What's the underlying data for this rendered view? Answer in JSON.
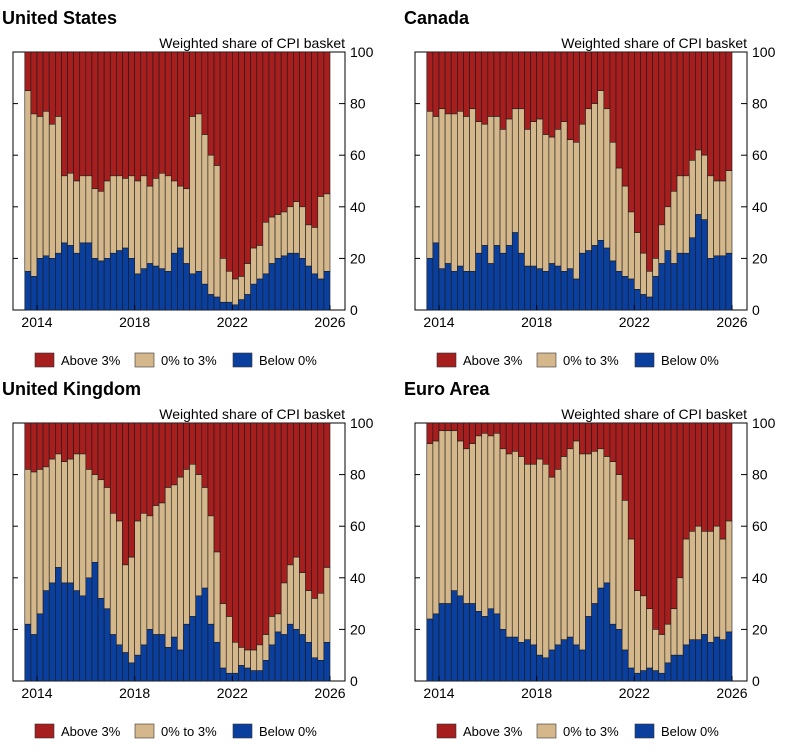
{
  "chart_data": {
    "type": "bar",
    "stacked": true,
    "frequency": "quarterly",
    "x_start": "2013-Q3",
    "x_end": "2025-Q4",
    "xticks": [
      "2014",
      "2018",
      "2022",
      "2026"
    ],
    "yticks": [
      "0",
      "20",
      "40",
      "60",
      "80",
      "100"
    ],
    "ylim": [
      0,
      100
    ],
    "ylabel": "Weighted share of CPI basket",
    "yaxis_side": "right",
    "grid": false,
    "legend": {
      "placement": "bottom",
      "entries": [
        "Above 3%",
        "0% to 3%",
        "Below 0%"
      ]
    },
    "colors": {
      "above": "#a61e1e",
      "mid": "#d4b88c",
      "below": "#0b3f9e"
    },
    "panels": [
      {
        "title": "United States",
        "below": [
          15,
          13,
          20,
          21,
          20,
          22,
          26,
          25,
          22,
          26,
          26,
          20,
          19,
          20,
          22,
          23,
          24,
          20,
          14,
          16,
          18,
          17,
          16,
          15,
          22,
          24,
          18,
          14,
          15,
          10,
          6,
          5,
          3,
          3,
          2,
          4,
          6,
          10,
          12,
          14,
          18,
          20,
          21,
          22,
          22,
          20,
          17,
          14,
          12,
          15
        ],
        "below_plus_mid": [
          85,
          76,
          75,
          77,
          72,
          75,
          52,
          53,
          50,
          52,
          52,
          47,
          46,
          50,
          52,
          52,
          51,
          52,
          50,
          52,
          48,
          51,
          53,
          52,
          50,
          48,
          47,
          75,
          76,
          68,
          60,
          56,
          20,
          15,
          12,
          13,
          18,
          24,
          25,
          34,
          36,
          37,
          38,
          40,
          42,
          40,
          33,
          32,
          44,
          45
        ]
      },
      {
        "title": "Canada",
        "below": [
          20,
          26,
          16,
          18,
          15,
          17,
          15,
          15,
          22,
          25,
          18,
          25,
          22,
          25,
          30,
          22,
          17,
          17,
          16,
          15,
          18,
          17,
          15,
          16,
          12,
          22,
          23,
          25,
          27,
          24,
          19,
          15,
          13,
          12,
          8,
          6,
          5,
          13,
          18,
          23,
          18,
          22,
          22,
          28,
          37,
          35,
          20,
          21,
          21,
          22
        ],
        "below_plus_mid": [
          77,
          75,
          78,
          76,
          76,
          77,
          75,
          78,
          73,
          72,
          75,
          75,
          70,
          74,
          78,
          78,
          70,
          73,
          74,
          68,
          67,
          70,
          73,
          66,
          65,
          72,
          78,
          80,
          85,
          78,
          65,
          55,
          48,
          38,
          30,
          22,
          15,
          20,
          33,
          40,
          46,
          52,
          52,
          58,
          62,
          60,
          52,
          50,
          50,
          54
        ]
      },
      {
        "title": "United Kingdom",
        "below": [
          22,
          18,
          26,
          35,
          38,
          44,
          38,
          38,
          35,
          33,
          40,
          46,
          32,
          28,
          18,
          14,
          11,
          7,
          10,
          14,
          20,
          18,
          18,
          13,
          17,
          12,
          22,
          25,
          33,
          36,
          22,
          15,
          5,
          3,
          3,
          6,
          5,
          4,
          4,
          8,
          14,
          19,
          18,
          22,
          20,
          18,
          15,
          9,
          8,
          15
        ],
        "below_plus_mid": [
          82,
          81,
          82,
          83,
          86,
          88,
          85,
          86,
          88,
          88,
          82,
          80,
          78,
          75,
          65,
          62,
          45,
          48,
          62,
          65,
          64,
          68,
          69,
          75,
          76,
          79,
          82,
          84,
          80,
          75,
          64,
          50,
          30,
          25,
          15,
          13,
          12,
          12,
          14,
          18,
          25,
          26,
          38,
          45,
          48,
          42,
          35,
          32,
          34,
          44
        ]
      },
      {
        "title": "Euro Area",
        "below": [
          24,
          26,
          30,
          30,
          35,
          33,
          30,
          30,
          27,
          25,
          28,
          26,
          20,
          17,
          17,
          15,
          16,
          14,
          10,
          9,
          12,
          14,
          16,
          17,
          14,
          12,
          25,
          30,
          36,
          38,
          22,
          20,
          12,
          5,
          3,
          4,
          5,
          4,
          3,
          7,
          10,
          10,
          14,
          16,
          16,
          18,
          15,
          17,
          16,
          19
        ],
        "below_plus_mid": [
          92,
          93,
          97,
          97,
          97,
          93,
          90,
          92,
          95,
          96,
          95,
          96,
          90,
          88,
          89,
          87,
          84,
          84,
          86,
          84,
          79,
          82,
          87,
          90,
          93,
          88,
          88,
          89,
          90,
          87,
          85,
          80,
          70,
          55,
          35,
          33,
          28,
          20,
          18,
          22,
          28,
          40,
          55,
          58,
          60,
          58,
          58,
          60,
          55,
          62
        ]
      }
    ]
  }
}
